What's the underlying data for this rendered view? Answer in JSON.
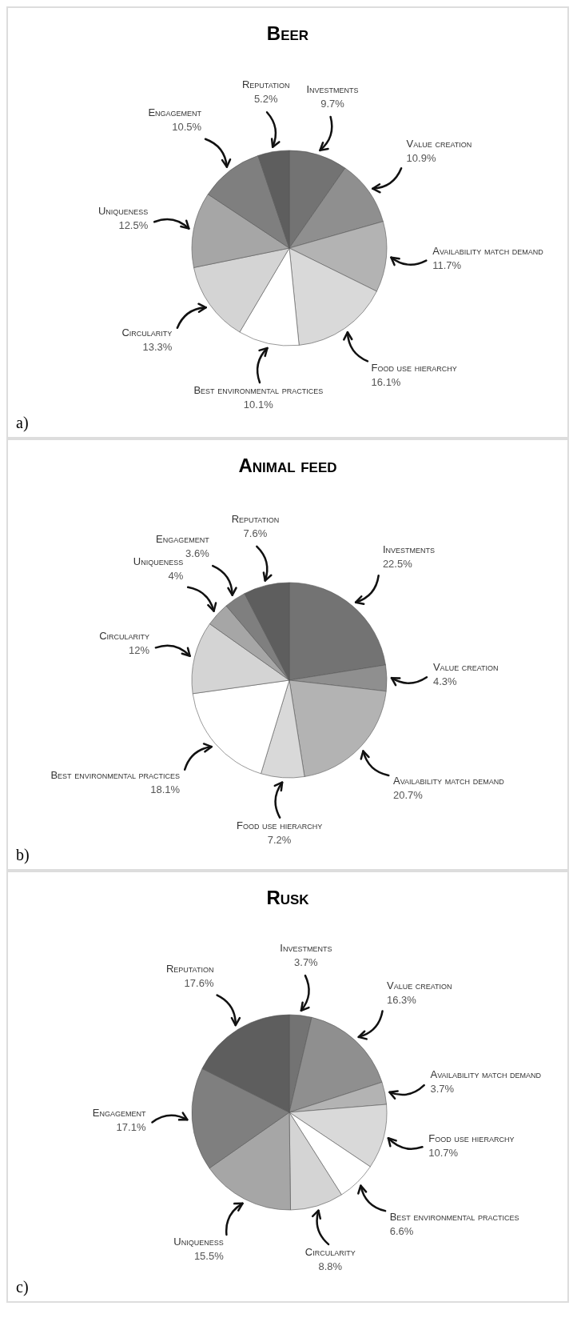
{
  "chart_data": [
    {
      "type": "pie",
      "title": "Beer",
      "categories": [
        "Investments",
        "Value creation",
        "Availability match demand",
        "Food use hierarchy",
        "Best environmental practices",
        "Circularity",
        "Uniqueness",
        "Engagement",
        "Reputation"
      ],
      "values": [
        9.7,
        10.9,
        11.7,
        16.1,
        10.1,
        13.3,
        12.5,
        10.5,
        5.2
      ],
      "value_labels": [
        "9.7%",
        "10.9%",
        "11.7%",
        "16.1%",
        "10.1%",
        "13.3%",
        "12.5%",
        "10.5%",
        "5.2%"
      ],
      "colors": [
        "#737373",
        "#8f8f8f",
        "#b3b3b3",
        "#d9d9d9",
        "#ffffff",
        "#d4d4d4",
        "#a6a6a6",
        "#7f7f7f",
        "#5e5e5e"
      ],
      "annotations": [
        "a)"
      ]
    },
    {
      "type": "pie",
      "title": "Animal feed",
      "categories": [
        "Investments",
        "Value creation",
        "Availability match demand",
        "Food use hierarchy",
        "Best environmental practices",
        "Circularity",
        "Uniqueness",
        "Engagement",
        "Reputation"
      ],
      "values": [
        22.5,
        4.3,
        20.7,
        7.2,
        18.1,
        12,
        4,
        3.6,
        7.6
      ],
      "value_labels": [
        "22.5%",
        "4.3%",
        "20.7%",
        "7.2%",
        "18.1%",
        "12%",
        "4%",
        "3.6%",
        "7.6%"
      ],
      "colors": [
        "#737373",
        "#8f8f8f",
        "#b3b3b3",
        "#d9d9d9",
        "#ffffff",
        "#d4d4d4",
        "#a6a6a6",
        "#7f7f7f",
        "#5e5e5e"
      ],
      "annotations": [
        "b)"
      ]
    },
    {
      "type": "pie",
      "title": "Rusk",
      "categories": [
        "Investments",
        "Value creation",
        "Availability match demand",
        "Food use hierarchy",
        "Best environmental practices",
        "Circularity",
        "Uniqueness",
        "Engagement",
        "Reputation"
      ],
      "values": [
        3.7,
        16.3,
        3.7,
        10.7,
        6.6,
        8.8,
        15.5,
        17.1,
        17.6
      ],
      "value_labels": [
        "3.7%",
        "16.3%",
        "3.7%",
        "10.7%",
        "6.6%",
        "8.8%",
        "15.5%",
        "17.1%",
        "17.6%"
      ],
      "colors": [
        "#737373",
        "#8f8f8f",
        "#b3b3b3",
        "#d9d9d9",
        "#ffffff",
        "#d4d4d4",
        "#a6a6a6",
        "#7f7f7f",
        "#5e5e5e"
      ],
      "annotations": [
        "c)"
      ]
    }
  ]
}
